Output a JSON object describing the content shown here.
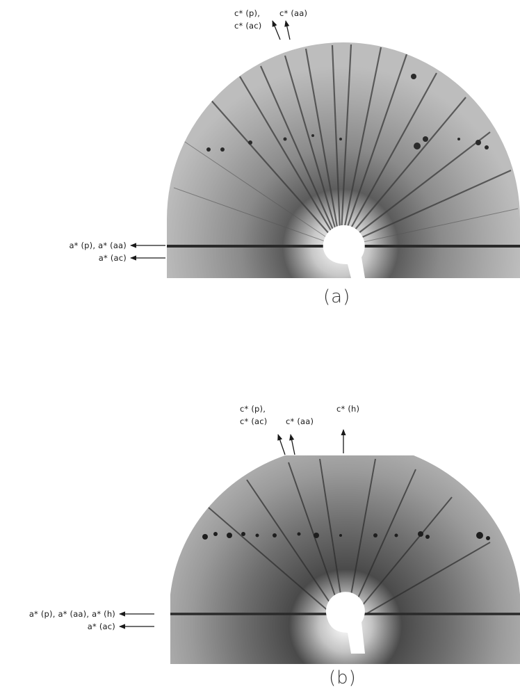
{
  "panels": [
    {
      "id": "a",
      "caption": "(a)",
      "top_labels": {
        "left_line1": "c* (p),",
        "left_line2": "c* (ac)",
        "right": "c* (aa)"
      },
      "side_labels": {
        "line1": "a* (p), a* (aa)",
        "line2": "a* (ac)"
      }
    },
    {
      "id": "b",
      "caption": "(b)",
      "top_labels": {
        "left_line1": "c* (p),",
        "left_line2": "c* (ac)",
        "middle": "c* (aa)",
        "right": "c* (h)"
      },
      "side_labels": {
        "line1": "a* (p), a* (aa), a* (h)",
        "line2": "a* (ac)"
      }
    }
  ]
}
